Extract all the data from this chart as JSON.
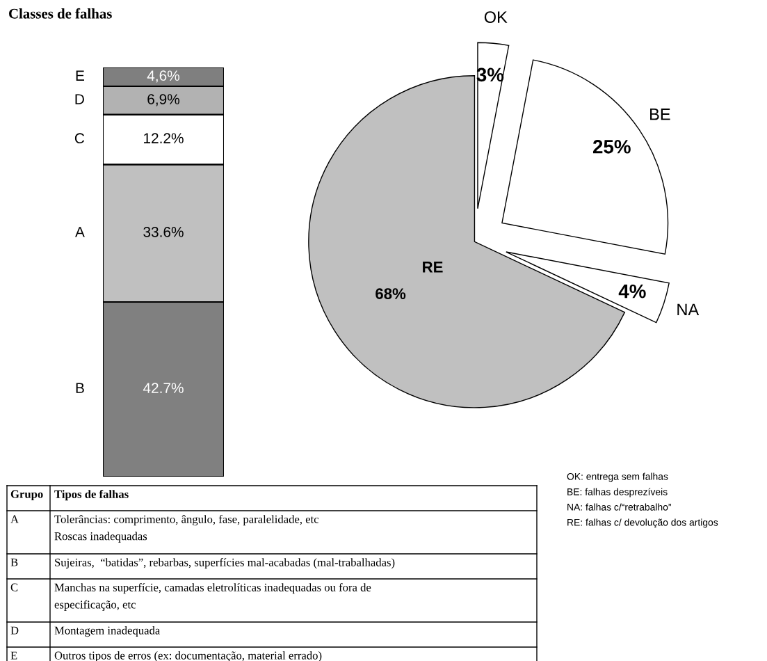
{
  "chart_data": [
    {
      "type": "bar",
      "title": "Classes de falhas",
      "stacked": true,
      "categories": [
        null
      ],
      "series": [
        {
          "name": "B",
          "color": "#808080",
          "values": [
            42.7
          ],
          "value_labels": [
            "42.7%"
          ]
        },
        {
          "name": "A",
          "color": "#c0c0c0",
          "values": [
            33.6
          ],
          "value_labels": [
            "33.6%"
          ]
        },
        {
          "name": "C",
          "color": "#ffffff",
          "values": [
            12.2
          ],
          "value_labels": [
            "12.2%"
          ]
        },
        {
          "name": "D",
          "color": "#b2b2b2",
          "values": [
            6.9
          ],
          "value_labels": [
            "6,9%"
          ]
        },
        {
          "name": "E",
          "color": "#7f7f7f",
          "values": [
            4.6
          ],
          "value_labels": [
            "4,6%"
          ]
        }
      ],
      "annotations": [
        "Grupo",
        "Tipos de falhas",
        "A",
        "Tolerâncias: comprimento, ângulo, fase, paralelidade, etc\nRoscas inadequadas",
        "B",
        "Sujeiras,  “batidas”, rebarbas, superfícies mal-acabadas (mal-trabalhadas)",
        "C",
        "Manchas na superfície, camadas eletrolíticas inadequadas ou fora de\nespecificação, etc",
        "D",
        "Montagem inadequada",
        "E",
        "Outros tipos de erros (ex: documentação, material errado)"
      ]
    },
    {
      "type": "pie",
      "categories": [
        "RE",
        "NA",
        "BE",
        "OK"
      ],
      "values": [
        68,
        4,
        25,
        3
      ],
      "colors": [
        "#c0c0c0",
        "#ffffff",
        "#ffffff",
        "#ffffff"
      ],
      "value_labels": [
        "68%",
        "4%",
        "25%",
        "3%"
      ],
      "annotations": [
        "OK: entrega sem falhas",
        "BE: falhas desprezíveis",
        "NA: falhas c/“retrabalho”",
        "RE: falhas c/ devolução dos artigos"
      ]
    }
  ]
}
